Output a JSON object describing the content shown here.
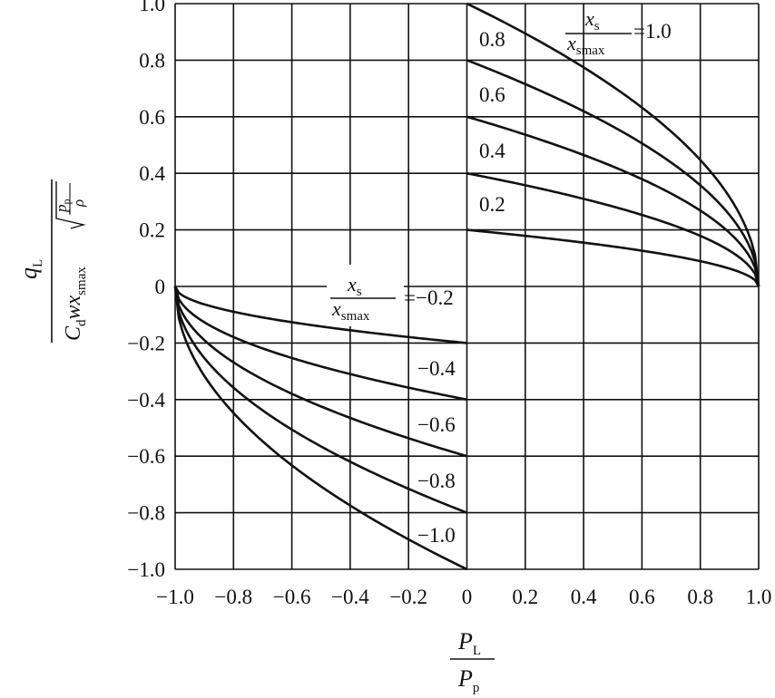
{
  "chart_data": {
    "type": "line",
    "xlim": [
      -1.0,
      1.0
    ],
    "ylim": [
      -1.0,
      1.0
    ],
    "grid": true,
    "x_ticks": [
      "−1.0",
      "−0.8",
      "−0.6",
      "−0.4",
      "−0.2",
      "0",
      "0.2",
      "0.4",
      "0.6",
      "0.8",
      "1.0"
    ],
    "y_ticks": [
      "1.0",
      "0.8",
      "0.6",
      "0.4",
      "0.2",
      "0",
      "−0.2",
      "−0.4",
      "−0.6",
      "−0.8",
      "−1.0"
    ],
    "xlabel": {
      "num_main": "P",
      "num_sub": "L",
      "den_main": "P",
      "den_sub": "p"
    },
    "ylabel": {
      "num_main": "q",
      "num_sub": "L",
      "den_main": "C",
      "den_sub1": "d",
      "den_mid": "wx",
      "den_sub2": "smax",
      "root_num_main": "p",
      "root_num_sub": "p",
      "root_den": "ρ"
    },
    "ratio_label": {
      "num_main": "x",
      "num_sub": "s",
      "den_main": "x",
      "den_sub": "smax"
    },
    "series": [
      {
        "label": "=1.0",
        "x": [
          0.0,
          0.2,
          0.4,
          0.6,
          0.8,
          1.0
        ],
        "y": [
          1.0,
          0.894,
          0.775,
          0.632,
          0.447,
          0.0
        ]
      },
      {
        "label": "0.8",
        "x": [
          0.0,
          0.2,
          0.4,
          0.6,
          0.8,
          1.0
        ],
        "y": [
          0.8,
          0.716,
          0.62,
          0.506,
          0.358,
          0.0
        ]
      },
      {
        "label": "0.6",
        "x": [
          0.0,
          0.2,
          0.4,
          0.6,
          0.8,
          1.0
        ],
        "y": [
          0.6,
          0.537,
          0.465,
          0.379,
          0.268,
          0.0
        ]
      },
      {
        "label": "0.4",
        "x": [
          0.0,
          0.2,
          0.4,
          0.6,
          0.8,
          1.0
        ],
        "y": [
          0.4,
          0.358,
          0.31,
          0.253,
          0.179,
          0.0
        ]
      },
      {
        "label": "0.2",
        "x": [
          0.0,
          0.2,
          0.4,
          0.6,
          0.8,
          1.0
        ],
        "y": [
          0.2,
          0.179,
          0.155,
          0.126,
          0.089,
          0.0
        ]
      },
      {
        "label": "=−0.2",
        "x": [
          -1.0,
          -0.8,
          -0.6,
          -0.4,
          -0.2,
          0.0
        ],
        "y": [
          0.0,
          -0.089,
          -0.126,
          -0.155,
          -0.179,
          -0.2
        ]
      },
      {
        "label": "−0.4",
        "x": [
          -1.0,
          -0.8,
          -0.6,
          -0.4,
          -0.2,
          0.0
        ],
        "y": [
          0.0,
          -0.179,
          -0.253,
          -0.31,
          -0.358,
          -0.4
        ]
      },
      {
        "label": "−0.6",
        "x": [
          -1.0,
          -0.8,
          -0.6,
          -0.4,
          -0.2,
          0.0
        ],
        "y": [
          0.0,
          -0.268,
          -0.379,
          -0.465,
          -0.537,
          -0.6
        ]
      },
      {
        "label": "−0.8",
        "x": [
          -1.0,
          -0.8,
          -0.6,
          -0.4,
          -0.2,
          0.0
        ],
        "y": [
          0.0,
          -0.358,
          -0.506,
          -0.62,
          -0.716,
          -0.8
        ]
      },
      {
        "label": "−1.0",
        "x": [
          -1.0,
          -0.8,
          -0.6,
          -0.4,
          -0.2,
          0.0
        ],
        "y": [
          0.0,
          -0.447,
          -0.632,
          -0.775,
          -0.894,
          -1.0
        ]
      }
    ]
  }
}
